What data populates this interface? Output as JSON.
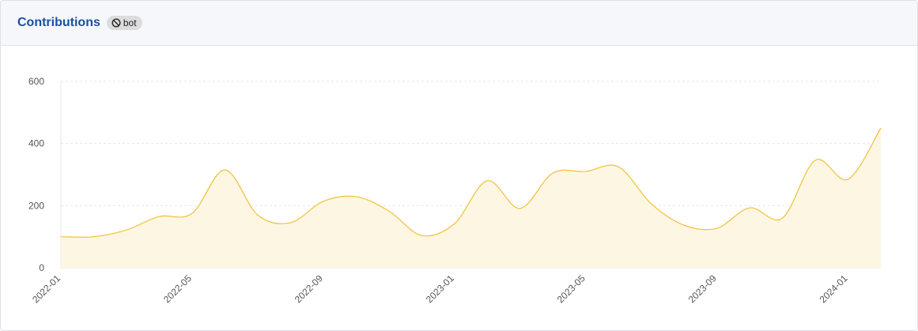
{
  "card": {
    "title": "Contributions",
    "badge": "bot"
  },
  "chart_data": {
    "type": "area",
    "categories": [
      "2022-01",
      null,
      null,
      null,
      "2022-05",
      null,
      null,
      null,
      "2022-09",
      null,
      null,
      null,
      "2023-01",
      null,
      null,
      null,
      "2023-05",
      null,
      null,
      null,
      "2023-09",
      null,
      null,
      null,
      "2024-01",
      null
    ],
    "values": [
      100,
      100,
      122,
      165,
      175,
      315,
      170,
      145,
      214,
      229,
      183,
      104,
      142,
      280,
      191,
      305,
      310,
      325,
      206,
      137,
      127,
      193,
      160,
      346,
      285,
      450
    ],
    "color": "#f2c037",
    "fill": "#fdf6e2",
    "ylim": [
      0,
      600
    ],
    "yticks": [
      0,
      200,
      400,
      600
    ],
    "grid": true
  }
}
